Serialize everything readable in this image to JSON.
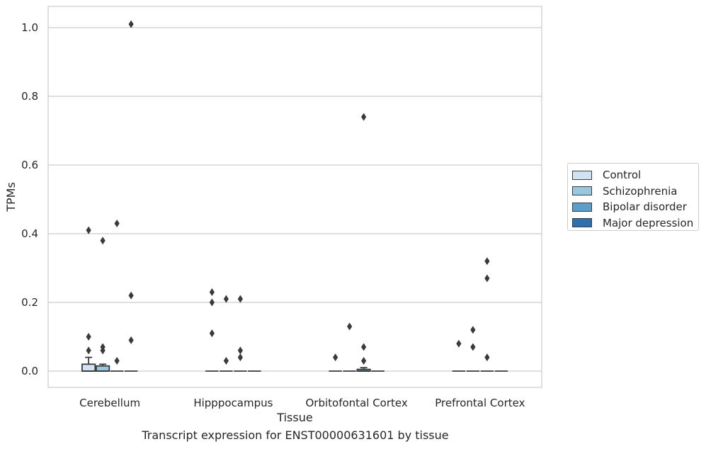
{
  "chart_data": {
    "type": "box",
    "caption": "Transcript expression for ENST00000631601 by tissue",
    "xlabel": "Tissue",
    "ylabel": "TPMs",
    "ylim": [
      -0.05,
      1.06
    ],
    "yticks": [
      "0.0",
      "0.2",
      "0.4",
      "0.6",
      "0.8",
      "1.0"
    ],
    "ytick_values": [
      0,
      0.2,
      0.4,
      0.6,
      0.8,
      1.0
    ],
    "grid": true,
    "legend_placement": "right",
    "categories": [
      "Cerebellum",
      "Hipppocampus",
      "Orbitofontal Cortex",
      "Prefrontal Cortex"
    ],
    "series": [
      {
        "name": "Control",
        "color": "#d1e3f2",
        "boxes": [
          {
            "q1": 0,
            "median": 0,
            "q3": 0.02,
            "whisker_low": 0,
            "whisker_high": 0.04,
            "outliers": [
              0.41,
              0.1,
              0.06
            ]
          },
          {
            "q1": 0,
            "median": 0,
            "q3": 0,
            "whisker_low": 0,
            "whisker_high": 0,
            "outliers": [
              0.23,
              0.2,
              0.11
            ]
          },
          {
            "q1": 0,
            "median": 0,
            "q3": 0,
            "whisker_low": 0,
            "whisker_high": 0,
            "outliers": [
              0.04
            ]
          },
          {
            "q1": 0,
            "median": 0,
            "q3": 0,
            "whisker_low": 0,
            "whisker_high": 0,
            "outliers": [
              0.08
            ]
          }
        ]
      },
      {
        "name": "Schizophrenia",
        "color": "#9ac7e0",
        "boxes": [
          {
            "q1": 0,
            "median": 0,
            "q3": 0.015,
            "whisker_low": 0,
            "whisker_high": 0.02,
            "outliers": [
              0.38,
              0.07,
              0.06
            ]
          },
          {
            "q1": 0,
            "median": 0,
            "q3": 0,
            "whisker_low": 0,
            "whisker_high": 0,
            "outliers": [
              0.21,
              0.03
            ]
          },
          {
            "q1": 0,
            "median": 0,
            "q3": 0,
            "whisker_low": 0,
            "whisker_high": 0,
            "outliers": [
              0.13
            ]
          },
          {
            "q1": 0,
            "median": 0,
            "q3": 0,
            "whisker_low": 0,
            "whisker_high": 0,
            "outliers": [
              0.12,
              0.07
            ]
          }
        ]
      },
      {
        "name": "Bipolar disorder",
        "color": "#5a9ec9",
        "boxes": [
          {
            "q1": 0,
            "median": 0,
            "q3": 0,
            "whisker_low": 0,
            "whisker_high": 0,
            "outliers": [
              0.43,
              0.03
            ]
          },
          {
            "q1": 0,
            "median": 0,
            "q3": 0,
            "whisker_low": 0,
            "whisker_high": 0,
            "outliers": [
              0.21,
              0.06,
              0.04
            ]
          },
          {
            "q1": 0,
            "median": 0,
            "q3": 0.005,
            "whisker_low": 0,
            "whisker_high": 0.01,
            "outliers": [
              0.74,
              0.07,
              0.03
            ]
          },
          {
            "q1": 0,
            "median": 0,
            "q3": 0,
            "whisker_low": 0,
            "whisker_high": 0,
            "outliers": [
              0.32,
              0.27,
              0.04
            ]
          }
        ]
      },
      {
        "name": "Major depression",
        "color": "#2e6fb0",
        "boxes": [
          {
            "q1": 0,
            "median": 0,
            "q3": 0,
            "whisker_low": 0,
            "whisker_high": 0,
            "outliers": [
              1.01,
              0.22,
              0.09
            ]
          },
          {
            "q1": 0,
            "median": 0,
            "q3": 0,
            "whisker_low": 0,
            "whisker_high": 0,
            "outliers": []
          },
          {
            "q1": 0,
            "median": 0,
            "q3": 0,
            "whisker_low": 0,
            "whisker_high": 0,
            "outliers": []
          },
          {
            "q1": 0,
            "median": 0,
            "q3": 0,
            "whisker_low": 0,
            "whisker_high": 0,
            "outliers": []
          }
        ]
      }
    ]
  }
}
